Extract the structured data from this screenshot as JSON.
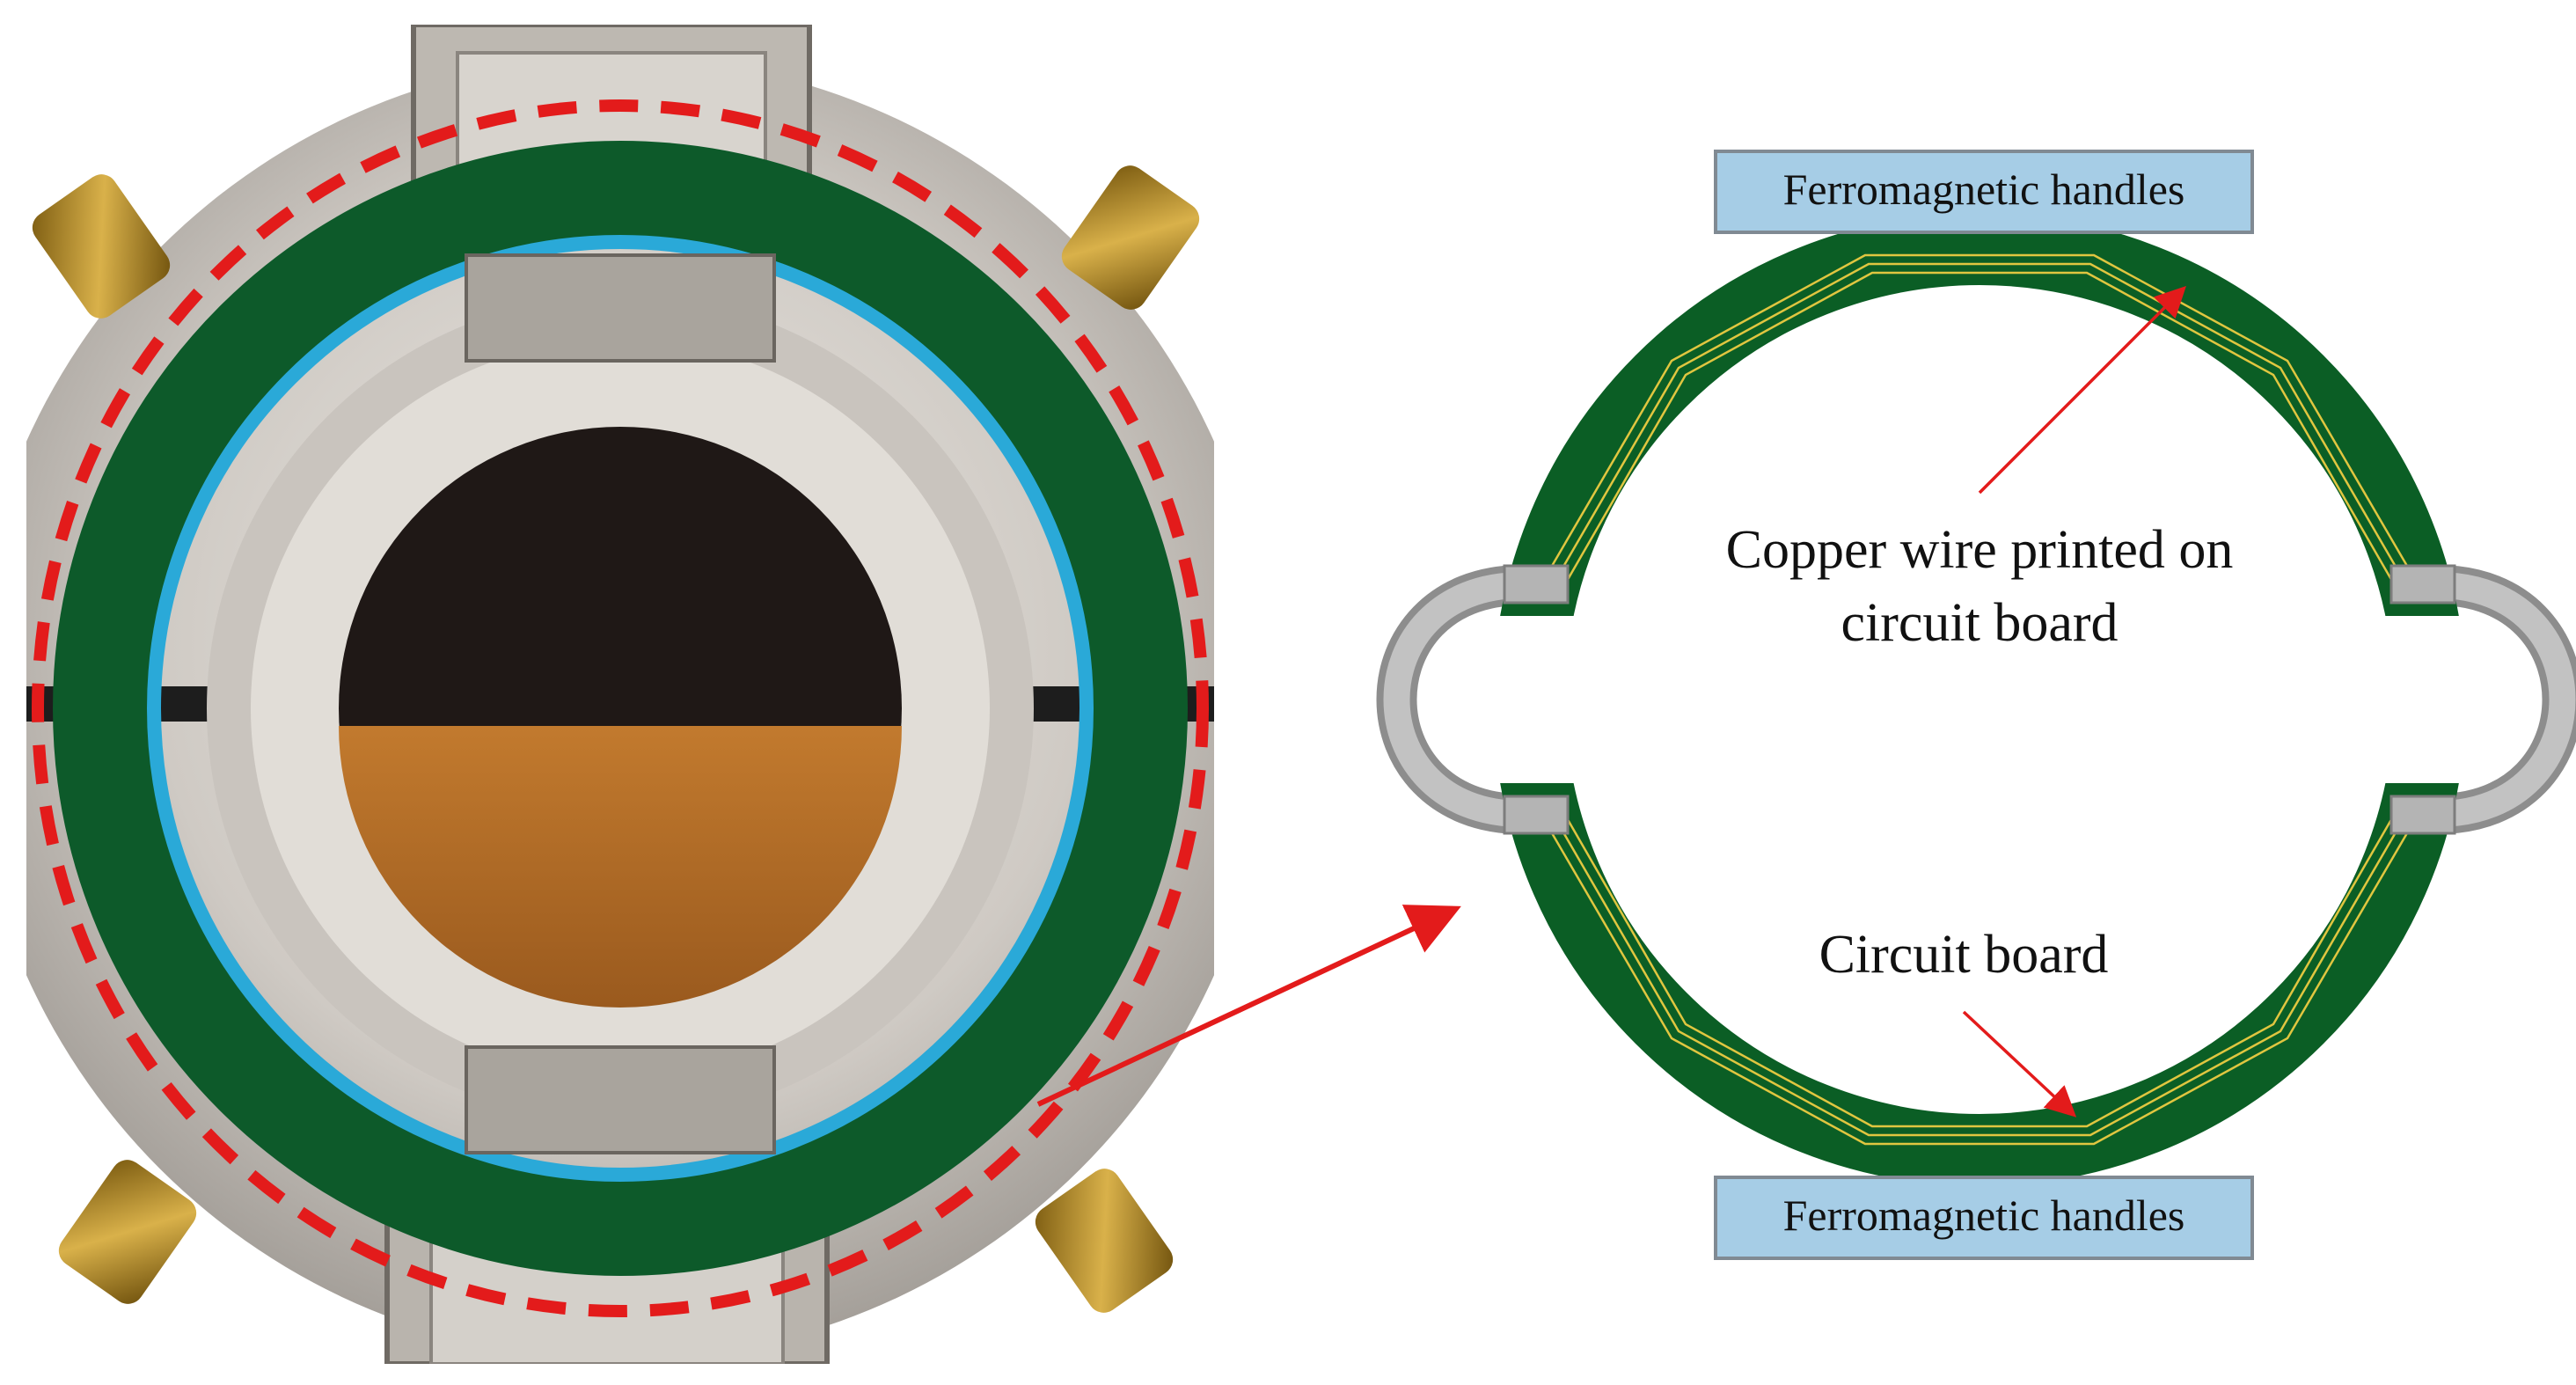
{
  "labels": {
    "handle_top": "Ferromagnetic handles",
    "handle_bottom": "Ferromagnetic handles",
    "copper_line1": "Copper wire printed on",
    "copper_line2": "circuit board",
    "circuit_board": "Circuit board"
  },
  "colors": {
    "board_green": "#0b5e25",
    "copper_yellow": "#e0c640",
    "handle_blue": "#a6cde6",
    "handle_border": "#808a93",
    "connector_gray": "#b4b4b4",
    "annotation_red": "#e31b1b",
    "metal_light": "#d6d2cc",
    "metal_dark": "#8f8a84"
  },
  "icons": {
    "highlight": "red-dashed-circle",
    "pointer": "red-arrow"
  }
}
